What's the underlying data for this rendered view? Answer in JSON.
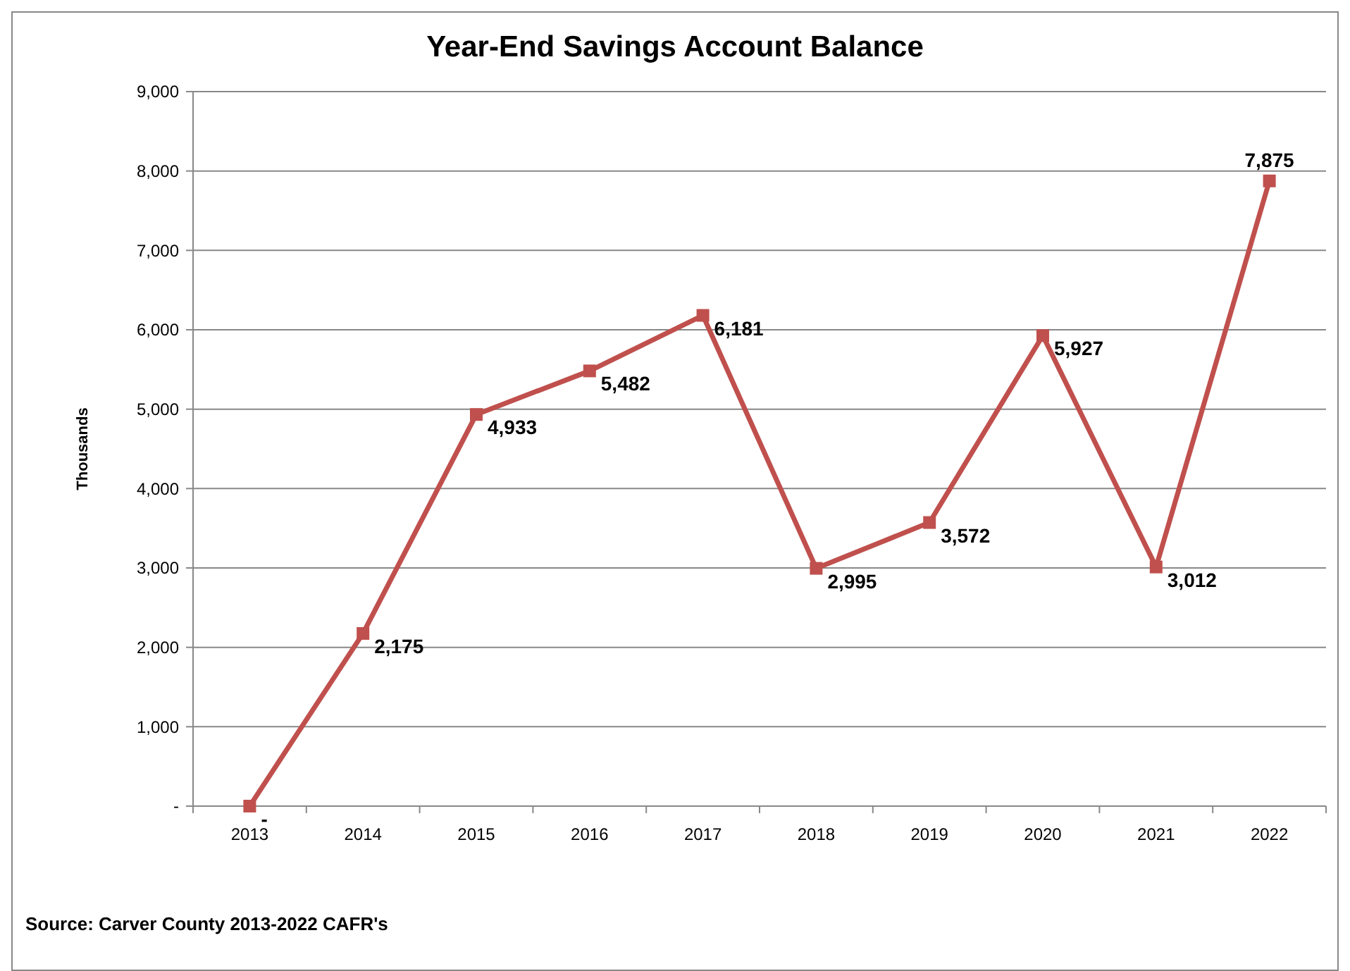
{
  "chart_data": {
    "type": "line",
    "title": "Year-End Savings Account Balance",
    "ylabel": "Thousands",
    "categories": [
      "2013",
      "2014",
      "2015",
      "2016",
      "2017",
      "2018",
      "2019",
      "2020",
      "2021",
      "2022"
    ],
    "series": [
      {
        "color": "#c0504d",
        "values": [
          0,
          2175,
          4933,
          5482,
          6181,
          2995,
          3572,
          5927,
          3012,
          7875
        ],
        "value_labels": [
          "-",
          "2,175",
          "4,933",
          "5,482",
          "6,181",
          "2,995",
          "3,572",
          "5,927",
          "3,012",
          "7,875"
        ]
      }
    ],
    "ylim": [
      0,
      9000
    ],
    "yticks": [
      {
        "value": 0,
        "label": "-"
      },
      {
        "value": 1000,
        "label": "1,000"
      },
      {
        "value": 2000,
        "label": "2,000"
      },
      {
        "value": 3000,
        "label": "3,000"
      },
      {
        "value": 4000,
        "label": "4,000"
      },
      {
        "value": 5000,
        "label": "5,000"
      },
      {
        "value": 6000,
        "label": "6,000"
      },
      {
        "value": 7000,
        "label": "7,000"
      },
      {
        "value": 8000,
        "label": "8,000"
      },
      {
        "value": 9000,
        "label": "9,000"
      }
    ],
    "grid": "y",
    "marker": "square",
    "line_style": "solid",
    "annotations": [
      "Source: Carver County 2013-2022 CAFR's"
    ]
  }
}
